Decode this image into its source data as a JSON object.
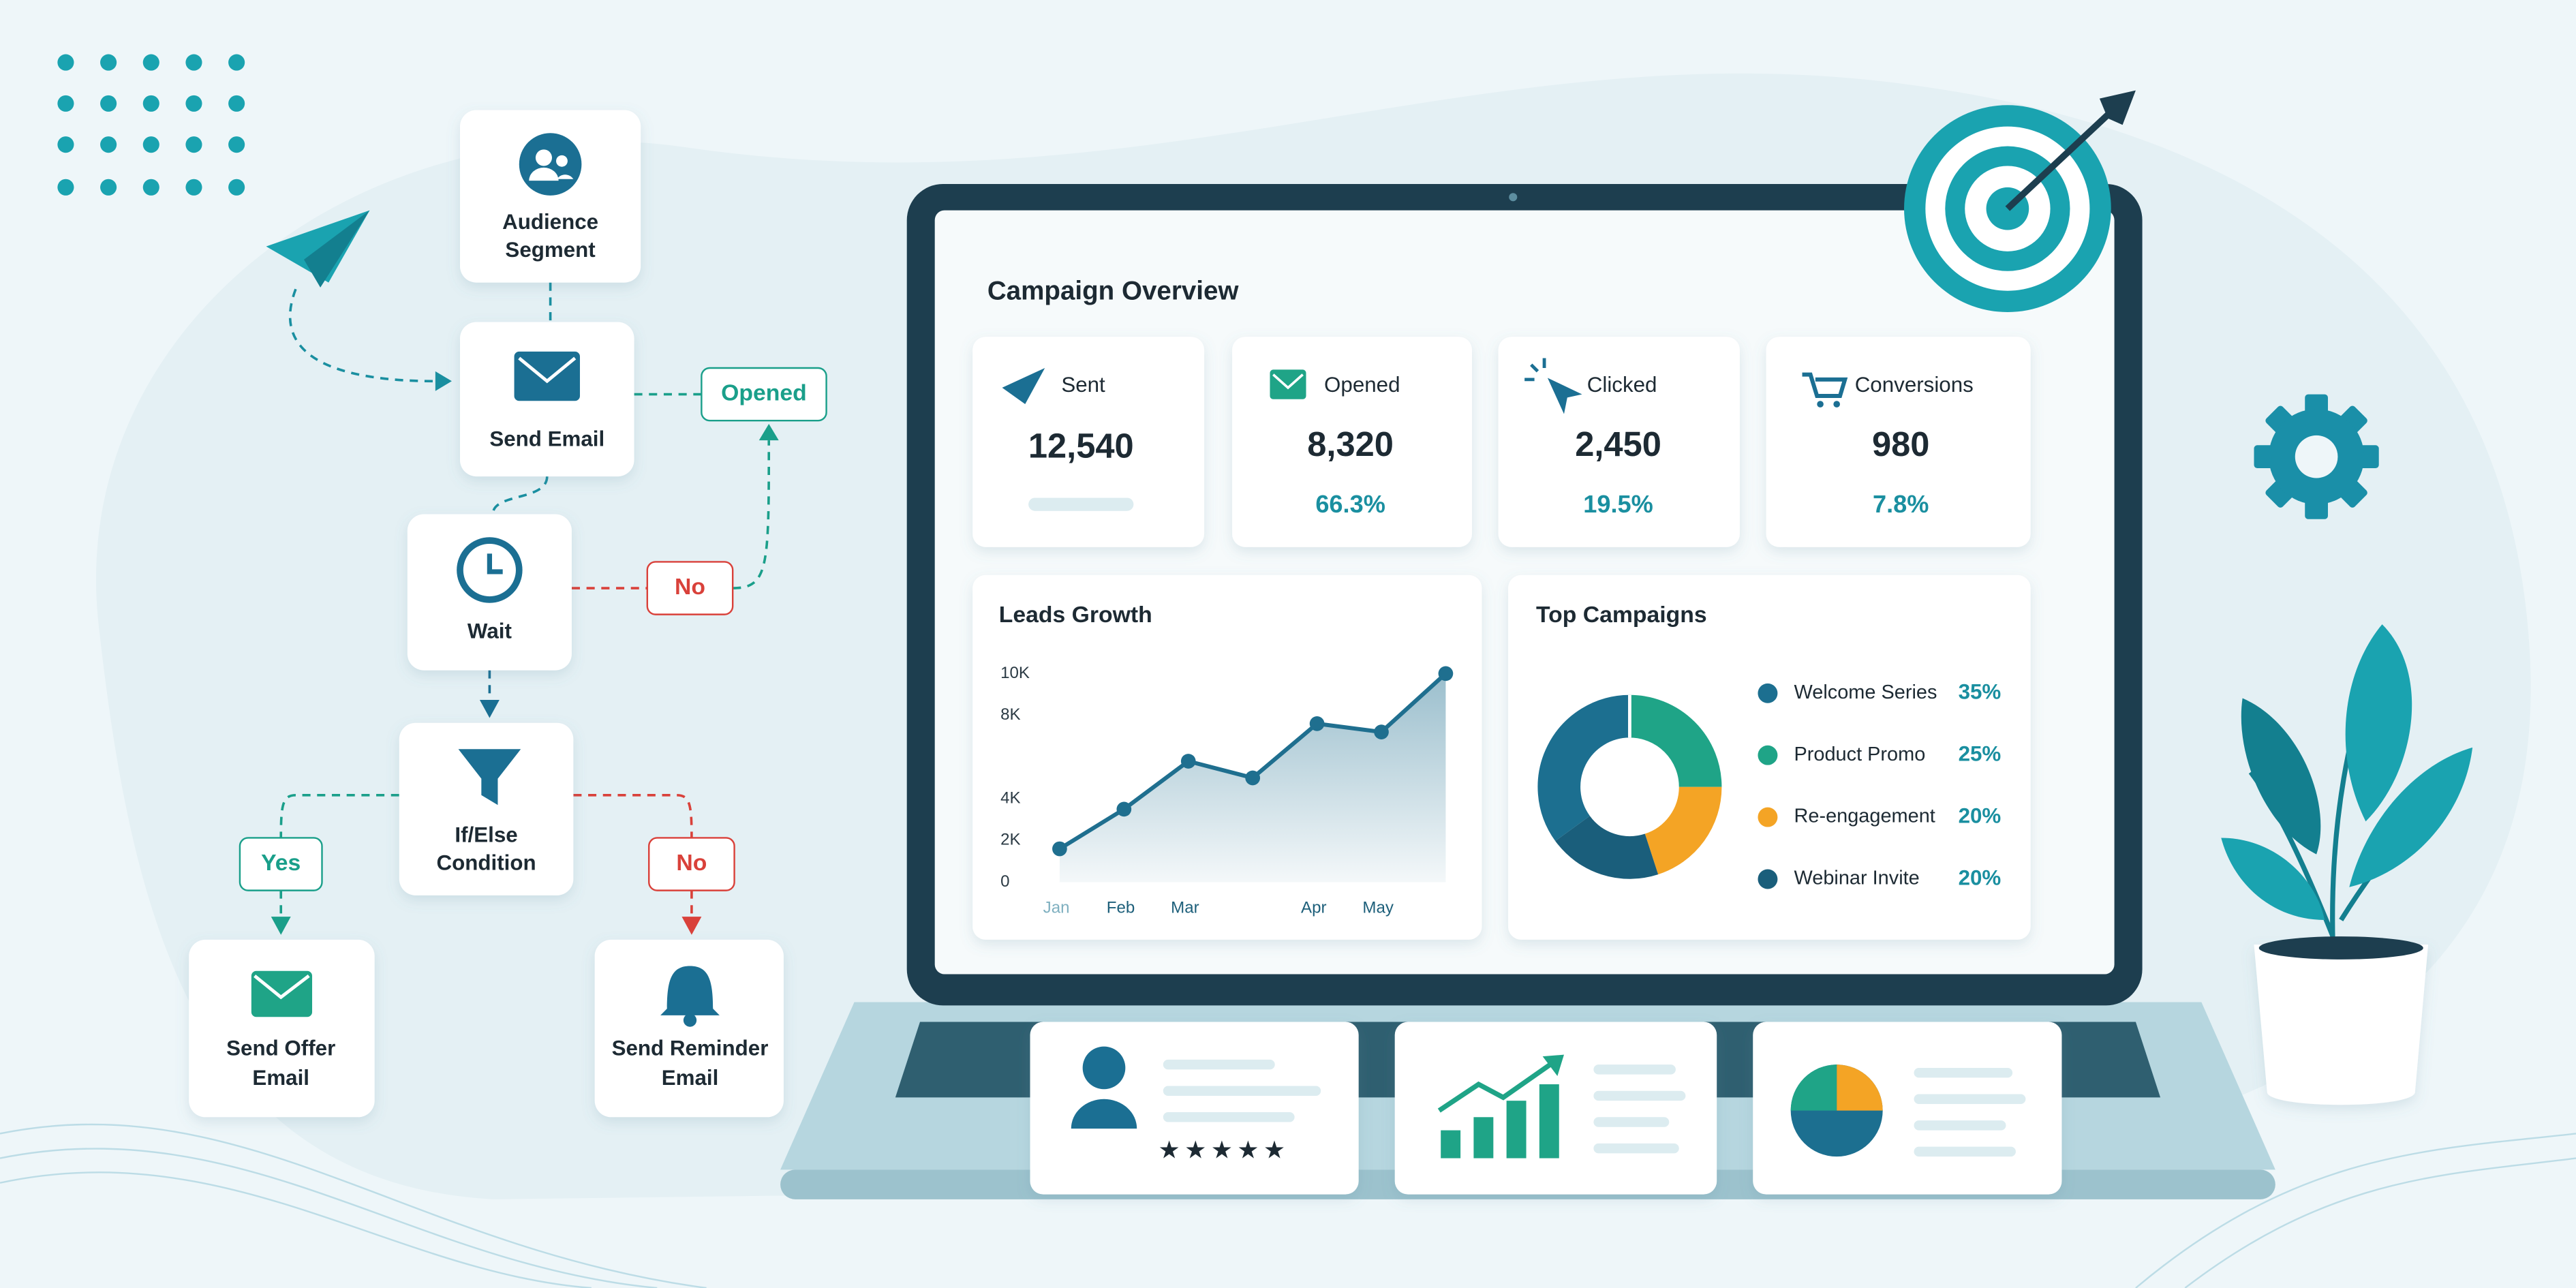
{
  "flow": {
    "nodes": [
      {
        "label": [
          "Audience",
          "Segment"
        ]
      },
      {
        "label": [
          "Send Email"
        ]
      },
      {
        "label": [
          "Wait"
        ]
      },
      {
        "label": [
          "If/Else",
          "Condition"
        ]
      },
      {
        "label": [
          "Send Offer",
          "Email"
        ]
      },
      {
        "label": [
          "Send Reminder",
          "Email"
        ]
      }
    ],
    "edge_labels": [
      "Opened",
      "No",
      "Yes",
      "No"
    ]
  },
  "dashboard": {
    "title": "Campaign Overview",
    "stats": [
      {
        "label": "Sent",
        "value": "12,540"
      },
      {
        "label": "Opened",
        "value": "8,320",
        "rate": "66.3%"
      },
      {
        "label": "Clicked",
        "value": "2,450",
        "rate": "19.5%"
      },
      {
        "label": "Conversions",
        "value": "980",
        "rate": "7.8%"
      }
    ]
  },
  "chart_data": [
    {
      "type": "line",
      "title": "Leads Growth",
      "categories": [
        "Jan",
        "Feb",
        "Mar",
        null,
        "Apr",
        "May",
        null
      ],
      "values": [
        1600,
        3500,
        5800,
        5000,
        7600,
        7200,
        10000
      ],
      "color": "#1f6f8f",
      "ylim": [
        0,
        10000
      ],
      "yticks": [
        0,
        {
          "value": 2000,
          "label": "2K"
        },
        {
          "value": 4000,
          "label": "4K"
        },
        {
          "value": 8000,
          "label": "8K"
        },
        {
          "value": 10000,
          "label": "10K"
        }
      ]
    },
    {
      "type": "donut",
      "title": "Top Campaigns",
      "categories": [
        "Welcome Series",
        "Product Promo",
        "Re-engagement",
        "Webinar Invite"
      ],
      "values": [
        35,
        25,
        20,
        20
      ],
      "value_labels": [
        "35%",
        "25%",
        "20%",
        "20%"
      ],
      "colors": [
        "#1c6f90",
        "#1fa487",
        "#f4a425",
        "#1a5e7b"
      ]
    }
  ]
}
